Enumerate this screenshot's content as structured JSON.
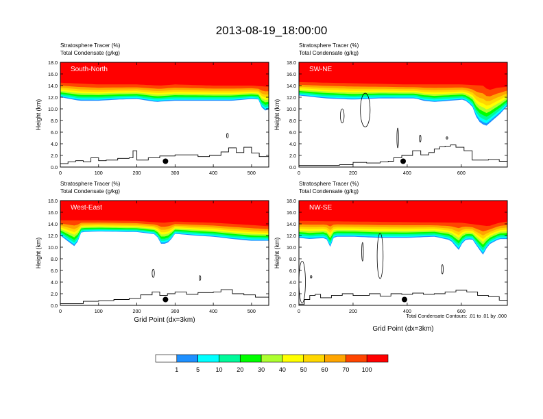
{
  "title": "2013-08-19_18:00:00",
  "field_labels": [
    "Stratosphere Tracer   (%)",
    "Total Condensate   (g/kg)"
  ],
  "xlabel": "Grid Point (dx=3km)",
  "ylabel": "Height (km)",
  "contour_note": "Total Condensate Contours: .01 to .01 by .000",
  "colorbar": {
    "colors": [
      "#ffffff",
      "#1e90ff",
      "#00ffff",
      "#00fa9a",
      "#00ff00",
      "#adff2f",
      "#ffff00",
      "#ffd700",
      "#ffa500",
      "#ff4500",
      "#ff0000"
    ],
    "tick_labels": [
      "1",
      "5",
      "10",
      "20",
      "30",
      "40",
      "50",
      "60",
      "70",
      "100"
    ]
  },
  "chart_data": [
    {
      "type": "heatmap",
      "panel": "South-North",
      "xlim": [
        0,
        545
      ],
      "ylim": [
        0,
        18
      ],
      "xticks": [
        0,
        100,
        200,
        300,
        400,
        500
      ],
      "yticks": [
        0,
        2,
        4,
        6,
        8,
        10,
        12,
        14,
        16,
        18
      ],
      "ytick_labels": [
        "0.0",
        "2.0",
        "4.0",
        "6.0",
        "8.0",
        "10.0",
        "12.0",
        "14.0",
        "16.0",
        "18.0"
      ],
      "tracer_bottom_km": [
        [
          0,
          12.0
        ],
        [
          50,
          11.4
        ],
        [
          100,
          11.4
        ],
        [
          150,
          11.6
        ],
        [
          200,
          11.7
        ],
        [
          250,
          11.2
        ],
        [
          300,
          11.4
        ],
        [
          350,
          11.4
        ],
        [
          400,
          11.4
        ],
        [
          450,
          11.4
        ],
        [
          500,
          11.7
        ],
        [
          520,
          11.6
        ],
        [
          530,
          9.6
        ],
        [
          545,
          9.9
        ]
      ],
      "tracer_top_km": [
        [
          0,
          14.5
        ],
        [
          100,
          14.2
        ],
        [
          200,
          14.2
        ],
        [
          260,
          14.0
        ],
        [
          300,
          14.2
        ],
        [
          400,
          14.0
        ],
        [
          500,
          14.0
        ],
        [
          545,
          13.8
        ]
      ],
      "terrain_km": [
        [
          0,
          0.6
        ],
        [
          20,
          0.9
        ],
        [
          40,
          1.1
        ],
        [
          60,
          0.9
        ],
        [
          80,
          1.6
        ],
        [
          100,
          1.1
        ],
        [
          120,
          1.2
        ],
        [
          150,
          1.5
        ],
        [
          180,
          1.6
        ],
        [
          190,
          2.8
        ],
        [
          200,
          1.2
        ],
        [
          230,
          1.6
        ],
        [
          260,
          1.9
        ],
        [
          300,
          2.1
        ],
        [
          330,
          2.1
        ],
        [
          360,
          1.8
        ],
        [
          390,
          2.0
        ],
        [
          420,
          2.6
        ],
        [
          440,
          3.3
        ],
        [
          460,
          2.5
        ],
        [
          480,
          3.4
        ],
        [
          500,
          2.4
        ],
        [
          520,
          1.8
        ],
        [
          545,
          1.9
        ]
      ],
      "marker": [
        275,
        1.0
      ],
      "condensate_contours": [
        {
          "x": 437,
          "y": 5.4,
          "rx": 2,
          "ry": 0.4
        }
      ]
    },
    {
      "type": "heatmap",
      "panel": "SW-NE",
      "xlim": [
        0,
        770
      ],
      "ylim": [
        0,
        18
      ],
      "xticks": [
        0,
        200,
        400,
        600
      ],
      "yticks": [
        0,
        2,
        4,
        6,
        8,
        10,
        12,
        14,
        16,
        18
      ],
      "ytick_labels": [
        "0.0",
        "2.0",
        "4.0",
        "6.0",
        "8.0",
        "10.0",
        "12.0",
        "14.0",
        "16.0",
        "18.0"
      ],
      "tracer_bottom_km": [
        [
          0,
          12.3
        ],
        [
          100,
          11.8
        ],
        [
          200,
          11.6
        ],
        [
          300,
          11.8
        ],
        [
          380,
          11.8
        ],
        [
          430,
          11.8
        ],
        [
          460,
          11.4
        ],
        [
          500,
          11.2
        ],
        [
          560,
          11.4
        ],
        [
          610,
          11.6
        ],
        [
          640,
          10.5
        ],
        [
          660,
          8.0
        ],
        [
          690,
          7.0
        ],
        [
          740,
          9.0
        ],
        [
          770,
          10.5
        ]
      ],
      "tracer_top_km": [
        [
          0,
          14.6
        ],
        [
          200,
          14.4
        ],
        [
          400,
          14.2
        ],
        [
          440,
          14.2
        ],
        [
          600,
          14.2
        ],
        [
          680,
          14.0
        ],
        [
          700,
          13.2
        ],
        [
          730,
          13.6
        ],
        [
          770,
          13.8
        ]
      ],
      "terrain_km": [
        [
          0,
          0.3
        ],
        [
          100,
          0.3
        ],
        [
          150,
          0.4
        ],
        [
          200,
          0.8
        ],
        [
          250,
          0.7
        ],
        [
          300,
          0.9
        ],
        [
          330,
          1.0
        ],
        [
          350,
          1.6
        ],
        [
          380,
          2.0
        ],
        [
          420,
          2.8
        ],
        [
          450,
          2.1
        ],
        [
          480,
          2.5
        ],
        [
          500,
          3.1
        ],
        [
          520,
          3.5
        ],
        [
          540,
          3.6
        ],
        [
          560,
          3.8
        ],
        [
          580,
          3.4
        ],
        [
          610,
          2.8
        ],
        [
          640,
          1.2
        ],
        [
          700,
          1.3
        ],
        [
          740,
          1.0
        ],
        [
          770,
          0.9
        ]
      ],
      "marker": [
        385,
        1.0
      ],
      "condensate_contours": [
        {
          "x": 160,
          "y": 8.8,
          "rx": 7,
          "ry": 1.2
        },
        {
          "x": 245,
          "y": 9.8,
          "rx": 18,
          "ry": 2.9
        },
        {
          "x": 365,
          "y": 5.0,
          "rx": 3,
          "ry": 1.7
        },
        {
          "x": 448,
          "y": 4.9,
          "rx": 3,
          "ry": 0.6
        },
        {
          "x": 547,
          "y": 5.0,
          "rx": 3,
          "ry": 0.2
        }
      ]
    },
    {
      "type": "heatmap",
      "panel": "West-East",
      "xlim": [
        0,
        545
      ],
      "ylim": [
        0,
        18
      ],
      "xticks": [
        0,
        100,
        200,
        300,
        400,
        500
      ],
      "yticks": [
        0,
        2,
        4,
        6,
        8,
        10,
        12,
        14,
        16,
        18
      ],
      "ytick_labels": [
        "0.0",
        "2.0",
        "4.0",
        "6.0",
        "8.0",
        "10.0",
        "12.0",
        "14.0",
        "16.0",
        "18.0"
      ],
      "tracer_bottom_km": [
        [
          0,
          12.0
        ],
        [
          40,
          10.0
        ],
        [
          55,
          12.6
        ],
        [
          100,
          12.7
        ],
        [
          200,
          12.6
        ],
        [
          250,
          12.2
        ],
        [
          265,
          10.4
        ],
        [
          285,
          10.9
        ],
        [
          300,
          12.3
        ],
        [
          350,
          12.0
        ],
        [
          400,
          11.8
        ],
        [
          450,
          11.4
        ],
        [
          500,
          11.1
        ],
        [
          545,
          11.1
        ]
      ],
      "tracer_top_km": [
        [
          0,
          14.6
        ],
        [
          100,
          14.6
        ],
        [
          200,
          14.5
        ],
        [
          270,
          14.2
        ],
        [
          300,
          14.4
        ],
        [
          400,
          14.2
        ],
        [
          500,
          13.8
        ],
        [
          545,
          13.6
        ]
      ],
      "terrain_km": [
        [
          0,
          0.3
        ],
        [
          30,
          0.3
        ],
        [
          60,
          0.7
        ],
        [
          100,
          0.8
        ],
        [
          140,
          1.0
        ],
        [
          180,
          1.2
        ],
        [
          210,
          1.8
        ],
        [
          240,
          2.3
        ],
        [
          260,
          1.7
        ],
        [
          280,
          2.0
        ],
        [
          300,
          2.3
        ],
        [
          330,
          1.9
        ],
        [
          360,
          2.2
        ],
        [
          400,
          2.3
        ],
        [
          420,
          2.7
        ],
        [
          450,
          2.0
        ],
        [
          480,
          1.8
        ],
        [
          510,
          1.4
        ],
        [
          545,
          1.1
        ]
      ],
      "marker": [
        275,
        1.0
      ],
      "condensate_contours": [
        {
          "x": 243,
          "y": 5.5,
          "rx": 3,
          "ry": 0.7
        },
        {
          "x": 365,
          "y": 4.7,
          "rx": 2,
          "ry": 0.4
        }
      ]
    },
    {
      "type": "heatmap",
      "panel": "NW-SE",
      "xlim": [
        0,
        770
      ],
      "ylim": [
        0,
        18
      ],
      "xticks": [
        0,
        200,
        400,
        600
      ],
      "yticks": [
        0,
        2,
        4,
        6,
        8,
        10,
        12,
        14,
        16,
        18
      ],
      "ytick_labels": [
        "0.0",
        "2.0",
        "4.0",
        "6.0",
        "8.0",
        "10.0",
        "12.0",
        "14.0",
        "16.0",
        "18.0"
      ],
      "tracer_bottom_km": [
        [
          0,
          11.6
        ],
        [
          40,
          11.4
        ],
        [
          100,
          11.6
        ],
        [
          115,
          10.0
        ],
        [
          130,
          11.8
        ],
        [
          200,
          11.8
        ],
        [
          300,
          11.6
        ],
        [
          400,
          11.6
        ],
        [
          500,
          11.8
        ],
        [
          560,
          11.2
        ],
        [
          590,
          9.5
        ],
        [
          610,
          11.2
        ],
        [
          640,
          11.4
        ],
        [
          660,
          10.0
        ],
        [
          680,
          8.7
        ],
        [
          700,
          10.4
        ],
        [
          740,
          11.4
        ],
        [
          770,
          11.4
        ]
      ],
      "tracer_top_km": [
        [
          0,
          14.5
        ],
        [
          200,
          14.4
        ],
        [
          400,
          14.3
        ],
        [
          600,
          14.2
        ],
        [
          700,
          13.6
        ],
        [
          740,
          14.2
        ],
        [
          770,
          14.4
        ]
      ],
      "terrain_km": [
        [
          0,
          0.2
        ],
        [
          20,
          1.0
        ],
        [
          40,
          1.7
        ],
        [
          60,
          1.9
        ],
        [
          80,
          1.3
        ],
        [
          120,
          1.7
        ],
        [
          160,
          2.0
        ],
        [
          200,
          1.7
        ],
        [
          260,
          2.0
        ],
        [
          300,
          1.6
        ],
        [
          340,
          2.0
        ],
        [
          380,
          1.9
        ],
        [
          420,
          2.1
        ],
        [
          460,
          1.9
        ],
        [
          500,
          2.0
        ],
        [
          540,
          2.3
        ],
        [
          580,
          2.6
        ],
        [
          620,
          2.3
        ],
        [
          660,
          1.7
        ],
        [
          700,
          1.5
        ],
        [
          740,
          0.9
        ],
        [
          770,
          0.4
        ]
      ],
      "marker": [
        390,
        1.0
      ],
      "condensate_contours": [
        {
          "x": 12,
          "y": 4.0,
          "rx": 12,
          "ry": 3.6
        },
        {
          "x": 45,
          "y": 4.9,
          "rx": 2,
          "ry": 0.2
        },
        {
          "x": 235,
          "y": 9.2,
          "rx": 3,
          "ry": 1.6
        },
        {
          "x": 300,
          "y": 8.5,
          "rx": 11,
          "ry": 3.9
        },
        {
          "x": 530,
          "y": 6.2,
          "rx": 3,
          "ry": 0.8
        }
      ]
    }
  ]
}
